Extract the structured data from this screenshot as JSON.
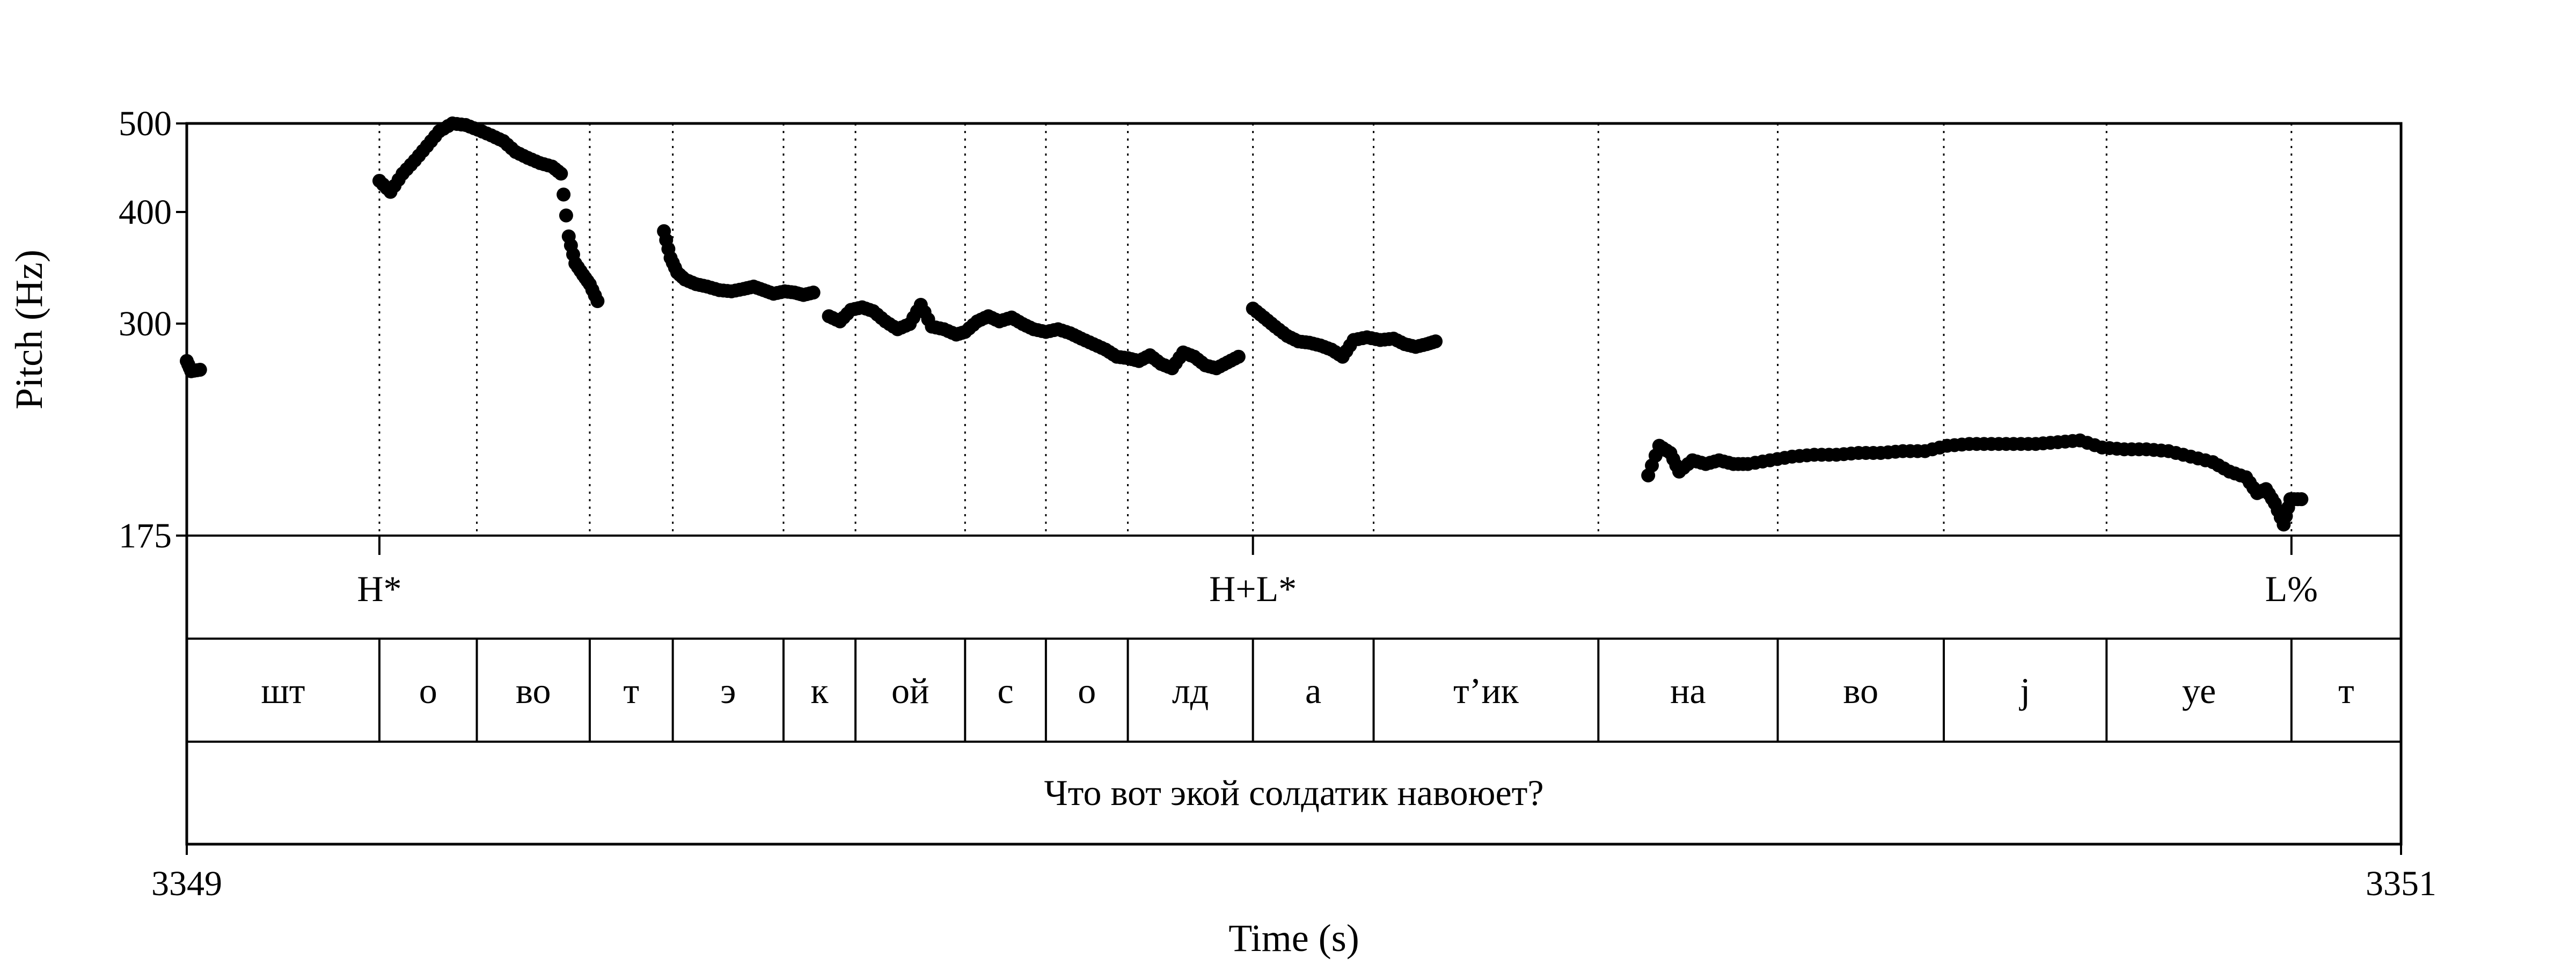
{
  "chart_data": {
    "type": "scatter",
    "xlabel": "Time (s)",
    "ylabel": "Pitch (Hz)",
    "xlim": [
      3349,
      3351
    ],
    "ylim": [
      175,
      500
    ],
    "y_scale": "log",
    "yticks": [
      175,
      300,
      400,
      500
    ],
    "xticks": [
      3349,
      3351
    ],
    "grid": false,
    "legend": "none",
    "marker_color": "#000000",
    "tier_boundaries": [
      3349.174,
      3349.262,
      3349.364,
      3349.439,
      3349.539,
      3349.604,
      3349.703,
      3349.776,
      3349.85,
      3349.963,
      3350.072,
      3350.275,
      3350.437,
      3350.587,
      3350.734,
      3350.901
    ],
    "tones": [
      {
        "t": 3349.174,
        "label": "H*"
      },
      {
        "t": 3349.963,
        "label": "H+L*"
      },
      {
        "t": 3350.901,
        "label": "L%"
      }
    ],
    "segments": [
      {
        "start": 3349.0,
        "end": 3349.174,
        "label": "шт"
      },
      {
        "start": 3349.174,
        "end": 3349.262,
        "label": "о"
      },
      {
        "start": 3349.262,
        "end": 3349.364,
        "label": "во"
      },
      {
        "start": 3349.364,
        "end": 3349.439,
        "label": "т"
      },
      {
        "start": 3349.439,
        "end": 3349.539,
        "label": "э"
      },
      {
        "start": 3349.539,
        "end": 3349.604,
        "label": "к"
      },
      {
        "start": 3349.604,
        "end": 3349.703,
        "label": "ой"
      },
      {
        "start": 3349.703,
        "end": 3349.776,
        "label": "с"
      },
      {
        "start": 3349.776,
        "end": 3349.85,
        "label": "о"
      },
      {
        "start": 3349.85,
        "end": 3349.963,
        "label": "лд"
      },
      {
        "start": 3349.963,
        "end": 3350.072,
        "label": "а"
      },
      {
        "start": 3350.072,
        "end": 3350.275,
        "label": "т’ик"
      },
      {
        "start": 3350.275,
        "end": 3350.437,
        "label": "на"
      },
      {
        "start": 3350.437,
        "end": 3350.587,
        "label": "во"
      },
      {
        "start": 3350.587,
        "end": 3350.734,
        "label": "j"
      },
      {
        "start": 3350.734,
        "end": 3350.901,
        "label": "уе"
      },
      {
        "start": 3350.901,
        "end": 3351.0,
        "label": "т"
      }
    ],
    "sentence": "Что вот экой солдатик навоюет?",
    "pitch_contours": [
      [
        [
          3349.0,
          273
        ],
        [
          3349.004,
          266
        ],
        [
          3349.012,
          267
        ]
      ],
      [
        [
          3349.174,
          432
        ],
        [
          3349.184,
          420
        ],
        [
          3349.195,
          440
        ],
        [
          3349.206,
          455
        ],
        [
          3349.217,
          472
        ],
        [
          3349.228,
          490
        ],
        [
          3349.24,
          500
        ],
        [
          3349.252,
          498
        ],
        [
          3349.263,
          492
        ],
        [
          3349.275,
          485
        ],
        [
          3349.286,
          478
        ],
        [
          3349.297,
          465
        ],
        [
          3349.308,
          458
        ],
        [
          3349.319,
          452
        ],
        [
          3349.33,
          448
        ],
        [
          3349.338,
          440
        ],
        [
          3349.345,
          375
        ],
        [
          3349.351,
          350
        ],
        [
          3349.358,
          340
        ],
        [
          3349.364,
          332
        ],
        [
          3349.371,
          318
        ]
      ],
      [
        [
          3349.431,
          380
        ],
        [
          3349.437,
          355
        ],
        [
          3349.443,
          342
        ],
        [
          3349.45,
          336
        ],
        [
          3349.46,
          332
        ],
        [
          3349.47,
          330
        ],
        [
          3349.481,
          327
        ],
        [
          3349.492,
          326
        ],
        [
          3349.503,
          328
        ],
        [
          3349.512,
          330
        ],
        [
          3349.521,
          327
        ],
        [
          3349.53,
          324
        ],
        [
          3349.54,
          326
        ],
        [
          3349.549,
          325
        ],
        [
          3349.557,
          323
        ],
        [
          3349.566,
          325
        ]
      ],
      [
        [
          3349.58,
          306
        ],
        [
          3349.59,
          302
        ],
        [
          3349.6,
          311
        ],
        [
          3349.61,
          313
        ],
        [
          3349.62,
          310
        ],
        [
          3349.631,
          302
        ],
        [
          3349.642,
          296
        ],
        [
          3349.653,
          300
        ],
        [
          3349.663,
          315
        ],
        [
          3349.673,
          298
        ],
        [
          3349.684,
          296
        ],
        [
          3349.695,
          292
        ],
        [
          3349.703,
          294
        ],
        [
          3349.714,
          302
        ],
        [
          3349.724,
          306
        ],
        [
          3349.734,
          302
        ],
        [
          3349.745,
          305
        ],
        [
          3349.755,
          300
        ],
        [
          3349.765,
          296
        ],
        [
          3349.776,
          294
        ],
        [
          3349.787,
          296
        ],
        [
          3349.798,
          293
        ],
        [
          3349.808,
          289
        ],
        [
          3349.819,
          285
        ],
        [
          3349.83,
          281
        ],
        [
          3349.84,
          276
        ],
        [
          3349.85,
          275
        ],
        [
          3349.86,
          273
        ],
        [
          3349.87,
          277
        ],
        [
          3349.88,
          271
        ],
        [
          3349.89,
          268
        ],
        [
          3349.9,
          279
        ],
        [
          3349.91,
          276
        ],
        [
          3349.92,
          270
        ],
        [
          3349.93,
          268
        ],
        [
          3349.94,
          272
        ],
        [
          3349.95,
          276
        ]
      ],
      [
        [
          3349.963,
          312
        ],
        [
          3349.973,
          305
        ],
        [
          3349.983,
          298
        ],
        [
          3349.994,
          291
        ],
        [
          3350.004,
          287
        ],
        [
          3350.014,
          286
        ],
        [
          3350.024,
          284
        ],
        [
          3350.034,
          281
        ],
        [
          3350.044,
          276
        ],
        [
          3350.054,
          288
        ],
        [
          3350.066,
          290
        ],
        [
          3350.078,
          288
        ],
        [
          3350.09,
          289
        ],
        [
          3350.1,
          285
        ],
        [
          3350.11,
          283
        ],
        [
          3350.12,
          285
        ],
        [
          3350.128,
          287
        ]
      ],
      [
        [
          3350.32,
          204
        ],
        [
          3350.33,
          220
        ],
        [
          3350.34,
          216
        ],
        [
          3350.348,
          206
        ],
        [
          3350.36,
          212
        ],
        [
          3350.372,
          210
        ],
        [
          3350.384,
          212
        ],
        [
          3350.397,
          210
        ],
        [
          3350.41,
          210
        ],
        [
          3350.43,
          212
        ],
        [
          3350.45,
          214
        ],
        [
          3350.47,
          215
        ],
        [
          3350.49,
          215
        ],
        [
          3350.51,
          216
        ],
        [
          3350.53,
          216
        ],
        [
          3350.55,
          217
        ],
        [
          3350.57,
          217
        ],
        [
          3350.59,
          220
        ],
        [
          3350.61,
          221
        ],
        [
          3350.63,
          221
        ],
        [
          3350.65,
          221
        ],
        [
          3350.67,
          221
        ],
        [
          3350.69,
          222
        ],
        [
          3350.71,
          223
        ],
        [
          3350.73,
          219
        ],
        [
          3350.75,
          218
        ],
        [
          3350.77,
          218
        ],
        [
          3350.79,
          217
        ],
        [
          3350.81,
          214
        ],
        [
          3350.83,
          211
        ],
        [
          3350.845,
          206
        ],
        [
          3350.86,
          203
        ],
        [
          3350.87,
          195
        ],
        [
          3350.878,
          197
        ],
        [
          3350.886,
          190
        ],
        [
          3350.894,
          180
        ],
        [
          3350.9,
          192
        ],
        [
          3350.91,
          192
        ]
      ]
    ]
  }
}
